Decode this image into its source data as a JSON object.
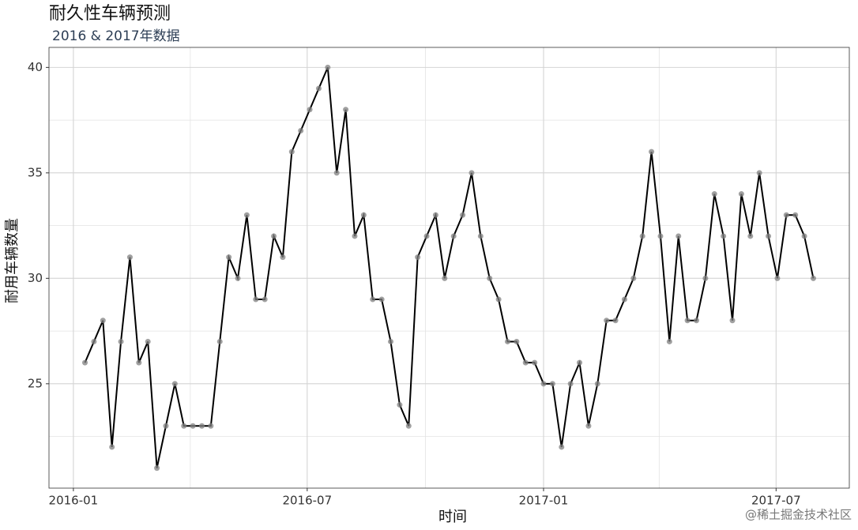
{
  "chart_data": {
    "type": "line",
    "title": "耐久性车辆预测",
    "subtitle": "2016 & 2017年数据",
    "x_label": "时间",
    "y_label": "耐用车辆数量",
    "watermark": "@稀土掘金技术社区",
    "x": [
      "2016-01-10",
      "2016-01-17",
      "2016-01-24",
      "2016-01-31",
      "2016-02-07",
      "2016-02-14",
      "2016-02-21",
      "2016-02-28",
      "2016-03-06",
      "2016-03-13",
      "2016-03-20",
      "2016-03-27",
      "2016-04-03",
      "2016-04-10",
      "2016-04-17",
      "2016-04-24",
      "2016-05-01",
      "2016-05-08",
      "2016-05-15",
      "2016-05-22",
      "2016-05-29",
      "2016-06-05",
      "2016-06-12",
      "2016-06-19",
      "2016-06-26",
      "2016-07-03",
      "2016-07-10",
      "2016-07-17",
      "2016-07-24",
      "2016-07-31",
      "2016-08-07",
      "2016-08-14",
      "2016-08-21",
      "2016-08-28",
      "2016-09-04",
      "2016-09-11",
      "2016-09-18",
      "2016-09-25",
      "2016-10-02",
      "2016-10-09",
      "2016-10-16",
      "2016-10-23",
      "2016-10-30",
      "2016-11-06",
      "2016-11-13",
      "2016-11-20",
      "2016-11-27",
      "2016-12-04",
      "2016-12-11",
      "2016-12-18",
      "2016-12-25",
      "2017-01-01",
      "2017-01-08",
      "2017-01-15",
      "2017-01-22",
      "2017-01-29",
      "2017-02-05",
      "2017-02-12",
      "2017-02-19",
      "2017-02-26",
      "2017-03-05",
      "2017-03-12",
      "2017-03-19",
      "2017-03-26",
      "2017-04-02",
      "2017-04-09",
      "2017-04-16",
      "2017-04-23",
      "2017-04-30",
      "2017-05-07",
      "2017-05-14",
      "2017-05-21",
      "2017-05-28",
      "2017-06-04",
      "2017-06-11",
      "2017-06-18",
      "2017-06-25",
      "2017-07-02",
      "2017-07-09",
      "2017-07-16",
      "2017-07-23",
      "2017-07-30"
    ],
    "series": [
      {
        "color": "#000000",
        "point_color": "#808080",
        "values": [
          26,
          27,
          28,
          22,
          27,
          31,
          26,
          27,
          21,
          23,
          25,
          23,
          23,
          23,
          23,
          27,
          31,
          30,
          33,
          29,
          29,
          32,
          31,
          36,
          37,
          38,
          39,
          40,
          35,
          38,
          32,
          33,
          29,
          29,
          27,
          24,
          23,
          31,
          32,
          33,
          30,
          32,
          33,
          35,
          32,
          30,
          29,
          27,
          27,
          26,
          26,
          25,
          25,
          22,
          25,
          26,
          23,
          25,
          28,
          28,
          29,
          30,
          32,
          36,
          32,
          27,
          32,
          28,
          28,
          30,
          34,
          32,
          28,
          34,
          32,
          35,
          32,
          30,
          33,
          33,
          32,
          30
        ]
      }
    ],
    "xlim": [
      "2015-12-13",
      "2017-08-27"
    ],
    "xticks": [
      {
        "value": "2016-01-01",
        "label": "2016-01"
      },
      {
        "value": "2016-07-01",
        "label": "2016-07"
      },
      {
        "value": "2017-01-01",
        "label": "2017-01"
      },
      {
        "value": "2017-07-01",
        "label": "2017-07"
      }
    ],
    "x_minor_gridlines": [
      "2016-04-01",
      "2016-10-01",
      "2017-04-01"
    ],
    "ylim": [
      20.05,
      40.95
    ],
    "yticks": [
      25,
      30,
      35,
      40
    ],
    "y_minor_gridlines": [
      22.5,
      27.5,
      32.5,
      37.5
    ],
    "grid": true
  }
}
